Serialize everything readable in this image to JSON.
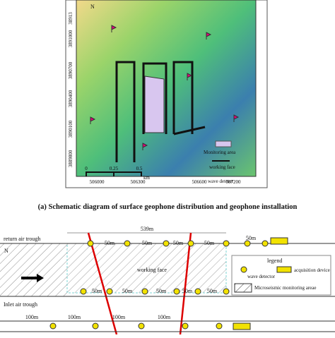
{
  "map": {
    "north": "N",
    "y_labels": [
      "38913",
      "3891000",
      "3890700",
      "3890400",
      "3890100",
      "3889800"
    ],
    "x_labels": [
      "506000",
      "506300",
      "506600",
      "507200"
    ],
    "scale": [
      "0",
      "0.25",
      "0.5",
      "km"
    ],
    "legend": [
      "Monitoring area",
      "working face",
      "wave detetor"
    ]
  },
  "caption": {
    "label": "(a)",
    "text": "Schematic diagram of surface geophone distribution and geophone installation"
  },
  "schematic": {
    "length": "539m",
    "return_trough": "return air trough",
    "inlet_trough": "Inlet air trough",
    "north": "N",
    "working_face": "working face",
    "top_spacings": [
      "50m",
      "50m",
      "50m",
      "50m",
      "50m"
    ],
    "bottom_spacings": [
      "50m",
      "50m",
      "50m",
      "50m",
      "50m"
    ],
    "long_spacings": [
      "100m",
      "100m",
      "100m",
      "100m"
    ],
    "legend": {
      "title": "legend",
      "detector": "wave detector",
      "device": "acquisition device",
      "area": "Microseismic monitoring areae"
    }
  }
}
